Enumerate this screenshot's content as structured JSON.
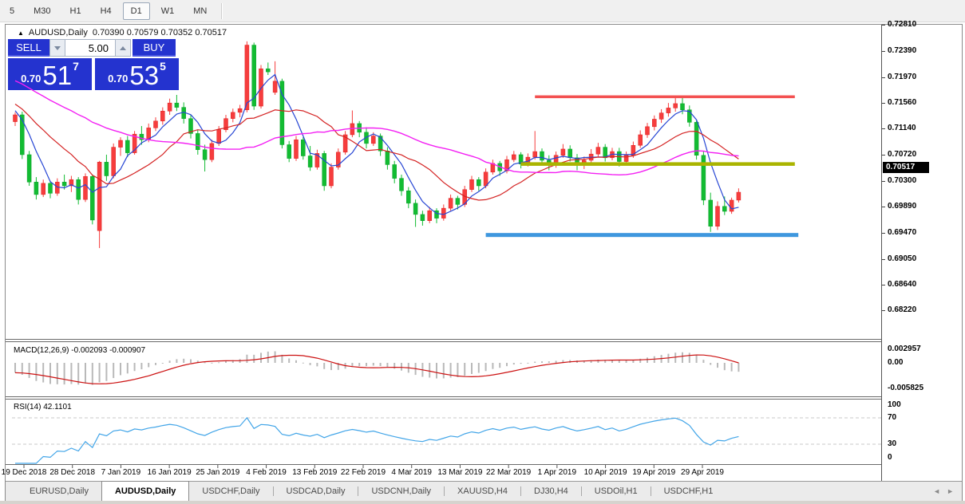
{
  "toolbar": {
    "timeframes": [
      "5",
      "M30",
      "H1",
      "H4",
      "D1",
      "W1",
      "MN"
    ],
    "active": "D1"
  },
  "chart_window": {
    "collapse_icon": "collapse-triangle",
    "title_symbol": "AUDUSD,Daily",
    "title_ohlc": "0.70390 0.70579 0.70352 0.70517"
  },
  "trade_panel": {
    "sell_label": "SELL",
    "buy_label": "BUY",
    "volume": "5.00",
    "sell_price": {
      "prefix": "0.70",
      "big": "51",
      "sup": "7"
    },
    "buy_price": {
      "prefix": "0.70",
      "big": "53",
      "sup": "5"
    },
    "panel_color": "#2433cf"
  },
  "price_axis": {
    "labels": [
      "0.72810",
      "0.72390",
      "0.71970",
      "0.71560",
      "0.71140",
      "0.70720",
      "0.70300",
      "0.69890",
      "0.69470",
      "0.69050",
      "0.68640",
      "0.68220"
    ],
    "current_price": "0.70517"
  },
  "macd_panel": {
    "label": "MACD(12,26,9) -0.002093 -0.000907",
    "axis_labels": [
      "0.002957",
      "0.00",
      "-0.005825"
    ]
  },
  "rsi_panel": {
    "label": "RSI(14) 42.1101",
    "axis_labels": [
      "100",
      "70",
      "30",
      "0"
    ]
  },
  "time_axis": {
    "labels": [
      "19 Dec 2018",
      "28 Dec 2018",
      "7 Jan 2019",
      "16 Jan 2019",
      "25 Jan 2019",
      "4 Feb 2019",
      "13 Feb 2019",
      "22 Feb 2019",
      "4 Mar 2019",
      "13 Mar 2019",
      "22 Mar 2019",
      "1 Apr 2019",
      "10 Apr 2019",
      "19 Apr 2019",
      "29 Apr 2019"
    ]
  },
  "tabs": {
    "items": [
      "EURUSD,Daily",
      "AUDUSD,Daily",
      "USDCHF,Daily",
      "USDCAD,Daily",
      "USDCNH,Daily",
      "XAUUSD,H4",
      "DJ30,H4",
      "USDOil,H1",
      "USDCHF,H1"
    ],
    "active_index": 1,
    "nav_icons": [
      "◄",
      "►"
    ]
  },
  "chart_data": {
    "type": "candlestick",
    "symbol": "AUDUSD",
    "timeframe": "Daily",
    "title": "AUDUSD,Daily",
    "last_bar_ohlc": {
      "open": 0.7039,
      "high": 0.70579,
      "low": 0.70352,
      "close": 0.70517
    },
    "price_axis_range": [
      0.6822,
      0.7281
    ],
    "up_color": "#f63d3d",
    "down_color": "#12bc32",
    "candles": [
      [
        0.7165,
        0.718,
        0.7158,
        0.7176
      ],
      [
        0.7176,
        0.7181,
        0.7105,
        0.7112
      ],
      [
        0.7112,
        0.7118,
        0.7062,
        0.7068
      ],
      [
        0.7068,
        0.7076,
        0.704,
        0.7048
      ],
      [
        0.7048,
        0.7072,
        0.7044,
        0.7066
      ],
      [
        0.7066,
        0.707,
        0.7042,
        0.705
      ],
      [
        0.705,
        0.7074,
        0.7046,
        0.7068
      ],
      [
        0.7068,
        0.708,
        0.7056,
        0.7062
      ],
      [
        0.7062,
        0.7078,
        0.7052,
        0.7072
      ],
      [
        0.7072,
        0.7076,
        0.7032,
        0.704
      ],
      [
        0.704,
        0.7082,
        0.7036,
        0.7077
      ],
      [
        0.7077,
        0.708,
        0.7,
        0.7007
      ],
      [
        0.699,
        0.7102,
        0.6962,
        0.71
      ],
      [
        0.71,
        0.7112,
        0.707,
        0.7078
      ],
      [
        0.7078,
        0.713,
        0.7074,
        0.7124
      ],
      [
        0.7124,
        0.714,
        0.711,
        0.7135
      ],
      [
        0.7135,
        0.7142,
        0.7108,
        0.7115
      ],
      [
        0.7115,
        0.715,
        0.7112,
        0.7145
      ],
      [
        0.7145,
        0.7158,
        0.7128,
        0.7136
      ],
      [
        0.7136,
        0.7162,
        0.7132,
        0.7155
      ],
      [
        0.7155,
        0.7172,
        0.715,
        0.7166
      ],
      [
        0.7166,
        0.7188,
        0.716,
        0.7182
      ],
      [
        0.7182,
        0.7202,
        0.7176,
        0.7195
      ],
      [
        0.7195,
        0.7208,
        0.7182,
        0.7188
      ],
      [
        0.7188,
        0.7196,
        0.7162,
        0.717
      ],
      [
        0.717,
        0.7176,
        0.7138,
        0.7146
      ],
      [
        0.7146,
        0.7152,
        0.7112,
        0.712
      ],
      [
        0.712,
        0.7128,
        0.7085,
        0.7104
      ],
      [
        0.7104,
        0.7136,
        0.71,
        0.713
      ],
      [
        0.713,
        0.7158,
        0.7126,
        0.7152
      ],
      [
        0.7152,
        0.7176,
        0.7148,
        0.717
      ],
      [
        0.717,
        0.7186,
        0.7164,
        0.718
      ],
      [
        0.718,
        0.7192,
        0.7172,
        0.7186
      ],
      [
        0.7184,
        0.7294,
        0.718,
        0.7288
      ],
      [
        0.7288,
        0.7292,
        0.7184,
        0.719
      ],
      [
        0.719,
        0.7256,
        0.7186,
        0.725
      ],
      [
        0.725,
        0.726,
        0.724,
        0.7245
      ],
      [
        0.7212,
        0.7262,
        0.7208,
        0.723
      ],
      [
        0.723,
        0.7234,
        0.7122,
        0.7128
      ],
      [
        0.7128,
        0.7134,
        0.71,
        0.7106
      ],
      [
        0.7106,
        0.7142,
        0.7102,
        0.7136
      ],
      [
        0.7136,
        0.714,
        0.7104,
        0.711
      ],
      [
        0.711,
        0.7126,
        0.7086,
        0.7092
      ],
      [
        0.7092,
        0.712,
        0.7088,
        0.7114
      ],
      [
        0.7114,
        0.7118,
        0.7054,
        0.7062
      ],
      [
        0.7062,
        0.7098,
        0.7058,
        0.7092
      ],
      [
        0.7092,
        0.7122,
        0.7088,
        0.7116
      ],
      [
        0.7116,
        0.715,
        0.7112,
        0.7144
      ],
      [
        0.7144,
        0.7183,
        0.714,
        0.7162
      ],
      [
        0.7162,
        0.7166,
        0.714,
        0.7148
      ],
      [
        0.7148,
        0.7156,
        0.7122,
        0.713
      ],
      [
        0.713,
        0.7148,
        0.7126,
        0.7142
      ],
      [
        0.7142,
        0.7146,
        0.711,
        0.7118
      ],
      [
        0.7118,
        0.7124,
        0.7088,
        0.7096
      ],
      [
        0.7096,
        0.7102,
        0.7066,
        0.7074
      ],
      [
        0.7074,
        0.708,
        0.7046,
        0.7054
      ],
      [
        0.7054,
        0.706,
        0.7026,
        0.7034
      ],
      [
        0.7034,
        0.704,
        0.6996,
        0.7016
      ],
      [
        0.7016,
        0.7022,
        0.6998,
        0.7006
      ],
      [
        0.7006,
        0.7028,
        0.7002,
        0.7022
      ],
      [
        0.7022,
        0.7026,
        0.7002,
        0.701
      ],
      [
        0.701,
        0.7032,
        0.7006,
        0.7026
      ],
      [
        0.7026,
        0.7048,
        0.7022,
        0.7042
      ],
      [
        0.7042,
        0.7046,
        0.7024,
        0.7032
      ],
      [
        0.7032,
        0.7062,
        0.7028,
        0.7056
      ],
      [
        0.7056,
        0.7078,
        0.7052,
        0.7072
      ],
      [
        0.7072,
        0.7076,
        0.7054,
        0.7062
      ],
      [
        0.7062,
        0.709,
        0.7058,
        0.7084
      ],
      [
        0.7084,
        0.7104,
        0.708,
        0.7098
      ],
      [
        0.7098,
        0.7102,
        0.7078,
        0.7086
      ],
      [
        0.7086,
        0.711,
        0.7082,
        0.7104
      ],
      [
        0.7104,
        0.7118,
        0.71,
        0.7112
      ],
      [
        0.7112,
        0.7116,
        0.709,
        0.7097
      ],
      [
        0.7097,
        0.7114,
        0.7093,
        0.7108
      ],
      [
        0.7108,
        0.715,
        0.7104,
        0.7117
      ],
      [
        0.7117,
        0.7122,
        0.7097,
        0.7103
      ],
      [
        0.7103,
        0.7111,
        0.7087,
        0.7095
      ],
      [
        0.7095,
        0.7117,
        0.7091,
        0.7111
      ],
      [
        0.7111,
        0.7129,
        0.7107,
        0.7121
      ],
      [
        0.7121,
        0.7127,
        0.7101,
        0.7107
      ],
      [
        0.7107,
        0.7113,
        0.7087,
        0.7095
      ],
      [
        0.7095,
        0.7109,
        0.7089,
        0.7103
      ],
      [
        0.7103,
        0.7121,
        0.7099,
        0.7113
      ],
      [
        0.7113,
        0.7131,
        0.7109,
        0.7124
      ],
      [
        0.7124,
        0.7129,
        0.7101,
        0.7107
      ],
      [
        0.7107,
        0.7123,
        0.7103,
        0.7117
      ],
      [
        0.7117,
        0.7123,
        0.7093,
        0.7101
      ],
      [
        0.7101,
        0.7117,
        0.7095,
        0.7111
      ],
      [
        0.7111,
        0.7133,
        0.7107,
        0.7127
      ],
      [
        0.7127,
        0.7151,
        0.7123,
        0.7144
      ],
      [
        0.7144,
        0.7163,
        0.7139,
        0.7157
      ],
      [
        0.7157,
        0.7175,
        0.7151,
        0.7169
      ],
      [
        0.7169,
        0.7185,
        0.7163,
        0.7179
      ],
      [
        0.7179,
        0.7195,
        0.7173,
        0.7187
      ],
      [
        0.7187,
        0.7206,
        0.7181,
        0.7194
      ],
      [
        0.7194,
        0.7203,
        0.7177,
        0.7184
      ],
      [
        0.7184,
        0.7191,
        0.7157,
        0.7164
      ],
      [
        0.7164,
        0.7167,
        0.7104,
        0.7111
      ],
      [
        0.7111,
        0.7117,
        0.7031,
        0.7039
      ],
      [
        0.7039,
        0.7051,
        0.6988,
        0.6997
      ],
      [
        0.6997,
        0.7037,
        0.6991,
        0.7029
      ],
      [
        0.7029,
        0.7045,
        0.7015,
        0.7021
      ],
      [
        0.7021,
        0.7043,
        0.7017,
        0.7039
      ],
      [
        0.7039,
        0.70579,
        0.70352,
        0.70517
      ]
    ],
    "moving_averages": [
      {
        "name": "fast-ma",
        "period": 5,
        "color": "#2746d4"
      },
      {
        "name": "medium-ma",
        "period": 13,
        "color": "#d42222"
      },
      {
        "name": "slow-ma",
        "period": 34,
        "color": "#f320f3"
      }
    ],
    "warmup": {
      "start": 0.731,
      "end": 0.718,
      "count": 40
    },
    "hlines": [
      {
        "name": "resistance-line",
        "color": "#f35050",
        "price": 0.7205,
        "from_bar": 74,
        "to_bar": 111,
        "thickness": 3.5
      },
      {
        "name": "pivot-line",
        "color": "#aab400",
        "price": 0.7097,
        "from_bar": 72,
        "to_bar": 111,
        "thickness": 4.5
      },
      {
        "name": "support-line",
        "color": "#3e97de",
        "price": 0.6983,
        "from_bar": 67,
        "to_bar": 111.5,
        "thickness": 5
      }
    ],
    "indicators": {
      "macd": {
        "fast": 12,
        "slow": 26,
        "signal": 9,
        "main_value": -0.002093,
        "signal_value": -0.000907,
        "scale_max": 0.002957,
        "scale_min": -0.005825,
        "histogram_color": "#b9b9b9",
        "signal_color": "#cc1111"
      },
      "rsi": {
        "period": 14,
        "value": 42.1101,
        "levels": [
          70,
          30
        ],
        "line_color": "#42a5e8"
      }
    },
    "grid": "off",
    "legend_position": "none"
  }
}
